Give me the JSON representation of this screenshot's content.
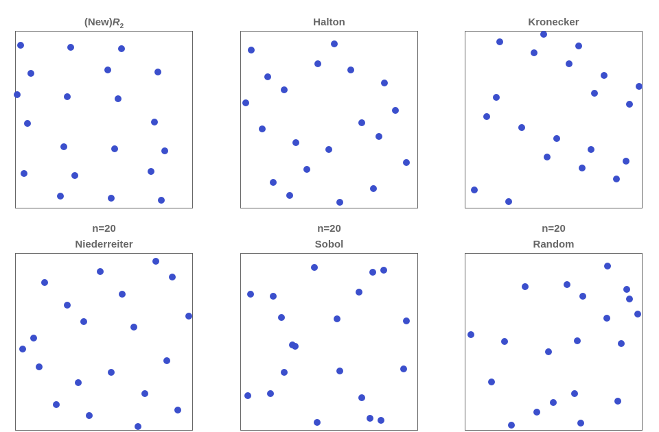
{
  "chart_data": [
    {
      "type": "scatter",
      "title": "(New)R2",
      "title_main": "(New)",
      "title_var": "R",
      "title_sub": "2",
      "xlim": [
        0,
        1
      ],
      "ylim": [
        0,
        1
      ],
      "grid": false,
      "color": "#3b4fcc",
      "points": [
        [
          0.031,
          0.919
        ],
        [
          0.313,
          0.907
        ],
        [
          0.598,
          0.899
        ],
        [
          0.089,
          0.76
        ],
        [
          0.521,
          0.779
        ],
        [
          0.803,
          0.767
        ],
        [
          0.012,
          0.64
        ],
        [
          0.293,
          0.628
        ],
        [
          0.579,
          0.616
        ],
        [
          0.069,
          0.477
        ],
        [
          0.784,
          0.488
        ],
        [
          0.274,
          0.349
        ],
        [
          0.56,
          0.337
        ],
        [
          0.842,
          0.326
        ],
        [
          0.05,
          0.198
        ],
        [
          0.336,
          0.186
        ],
        [
          0.764,
          0.209
        ],
        [
          0.255,
          0.07
        ],
        [
          0.541,
          0.058
        ],
        [
          0.822,
          0.047
        ]
      ]
    },
    {
      "type": "scatter",
      "title": "Halton",
      "xlim": [
        0,
        1
      ],
      "ylim": [
        0,
        1
      ],
      "grid": false,
      "color": "#3b4fcc",
      "points": [
        [
          0.062,
          0.891
        ],
        [
          0.529,
          0.926
        ],
        [
          0.436,
          0.814
        ],
        [
          0.622,
          0.779
        ],
        [
          0.154,
          0.74
        ],
        [
          0.811,
          0.705
        ],
        [
          0.247,
          0.667
        ],
        [
          0.031,
          0.593
        ],
        [
          0.873,
          0.554
        ],
        [
          0.683,
          0.481
        ],
        [
          0.124,
          0.446
        ],
        [
          0.78,
          0.407
        ],
        [
          0.313,
          0.372
        ],
        [
          0.498,
          0.333
        ],
        [
          0.934,
          0.26
        ],
        [
          0.375,
          0.221
        ],
        [
          0.185,
          0.147
        ],
        [
          0.749,
          0.112
        ],
        [
          0.278,
          0.074
        ],
        [
          0.56,
          0.035
        ]
      ]
    },
    {
      "type": "scatter",
      "title": "Kronecker",
      "xlim": [
        0,
        1
      ],
      "ylim": [
        0,
        1
      ],
      "grid": false,
      "color": "#3b4fcc",
      "points": [
        [
          0.197,
          0.938
        ],
        [
          0.444,
          0.981
        ],
        [
          0.39,
          0.876
        ],
        [
          0.641,
          0.915
        ],
        [
          0.587,
          0.814
        ],
        [
          0.784,
          0.748
        ],
        [
          0.981,
          0.686
        ],
        [
          0.73,
          0.647
        ],
        [
          0.178,
          0.624
        ],
        [
          0.927,
          0.585
        ],
        [
          0.124,
          0.519
        ],
        [
          0.32,
          0.457
        ],
        [
          0.517,
          0.395
        ],
        [
          0.71,
          0.333
        ],
        [
          0.463,
          0.291
        ],
        [
          0.907,
          0.267
        ],
        [
          0.66,
          0.229
        ],
        [
          0.853,
          0.167
        ],
        [
          0.054,
          0.105
        ],
        [
          0.247,
          0.039
        ]
      ]
    },
    {
      "type": "scatter",
      "title": "Niederreiter",
      "subtitle": "n=20",
      "xlim": [
        0,
        1
      ],
      "ylim": [
        0,
        1
      ],
      "grid": false,
      "color": "#3b4fcc",
      "points": [
        [
          0.792,
          0.954
        ],
        [
          0.479,
          0.896
        ],
        [
          0.884,
          0.865
        ],
        [
          0.166,
          0.834
        ],
        [
          0.602,
          0.768
        ],
        [
          0.293,
          0.707
        ],
        [
          0.977,
          0.645
        ],
        [
          0.386,
          0.614
        ],
        [
          0.668,
          0.583
        ],
        [
          0.104,
          0.521
        ],
        [
          0.042,
          0.459
        ],
        [
          0.853,
          0.394
        ],
        [
          0.135,
          0.359
        ],
        [
          0.541,
          0.328
        ],
        [
          0.355,
          0.27
        ],
        [
          0.73,
          0.208
        ],
        [
          0.232,
          0.147
        ],
        [
          0.915,
          0.116
        ],
        [
          0.417,
          0.085
        ],
        [
          0.691,
          0.023
        ]
      ]
    },
    {
      "type": "scatter",
      "title": "Sobol",
      "subtitle": "n=20",
      "xlim": [
        0,
        1
      ],
      "ylim": [
        0,
        1
      ],
      "grid": false,
      "color": "#3b4fcc",
      "points": [
        [
          0.417,
          0.919
        ],
        [
          0.745,
          0.892
        ],
        [
          0.807,
          0.903
        ],
        [
          0.058,
          0.768
        ],
        [
          0.185,
          0.757
        ],
        [
          0.668,
          0.78
        ],
        [
          0.232,
          0.637
        ],
        [
          0.544,
          0.629
        ],
        [
          0.934,
          0.618
        ],
        [
          0.293,
          0.483
        ],
        [
          0.309,
          0.475
        ],
        [
          0.247,
          0.328
        ],
        [
          0.56,
          0.336
        ],
        [
          0.919,
          0.347
        ],
        [
          0.042,
          0.197
        ],
        [
          0.17,
          0.208
        ],
        [
          0.683,
          0.185
        ],
        [
          0.73,
          0.069
        ],
        [
          0.792,
          0.058
        ],
        [
          0.432,
          0.046
        ]
      ]
    },
    {
      "type": "scatter",
      "title": "Random",
      "subtitle": "n=20",
      "xlim": [
        0,
        1
      ],
      "ylim": [
        0,
        1
      ],
      "grid": false,
      "color": "#3b4fcc",
      "points": [
        [
          0.803,
          0.927
        ],
        [
          0.34,
          0.811
        ],
        [
          0.575,
          0.822
        ],
        [
          0.911,
          0.795
        ],
        [
          0.664,
          0.757
        ],
        [
          0.927,
          0.741
        ],
        [
          0.973,
          0.656
        ],
        [
          0.799,
          0.633
        ],
        [
          0.035,
          0.541
        ],
        [
          0.224,
          0.502
        ],
        [
          0.633,
          0.506
        ],
        [
          0.88,
          0.49
        ],
        [
          0.471,
          0.444
        ],
        [
          0.151,
          0.274
        ],
        [
          0.618,
          0.208
        ],
        [
          0.861,
          0.166
        ],
        [
          0.498,
          0.158
        ],
        [
          0.405,
          0.104
        ],
        [
          0.653,
          0.042
        ],
        [
          0.263,
          0.031
        ]
      ]
    }
  ]
}
